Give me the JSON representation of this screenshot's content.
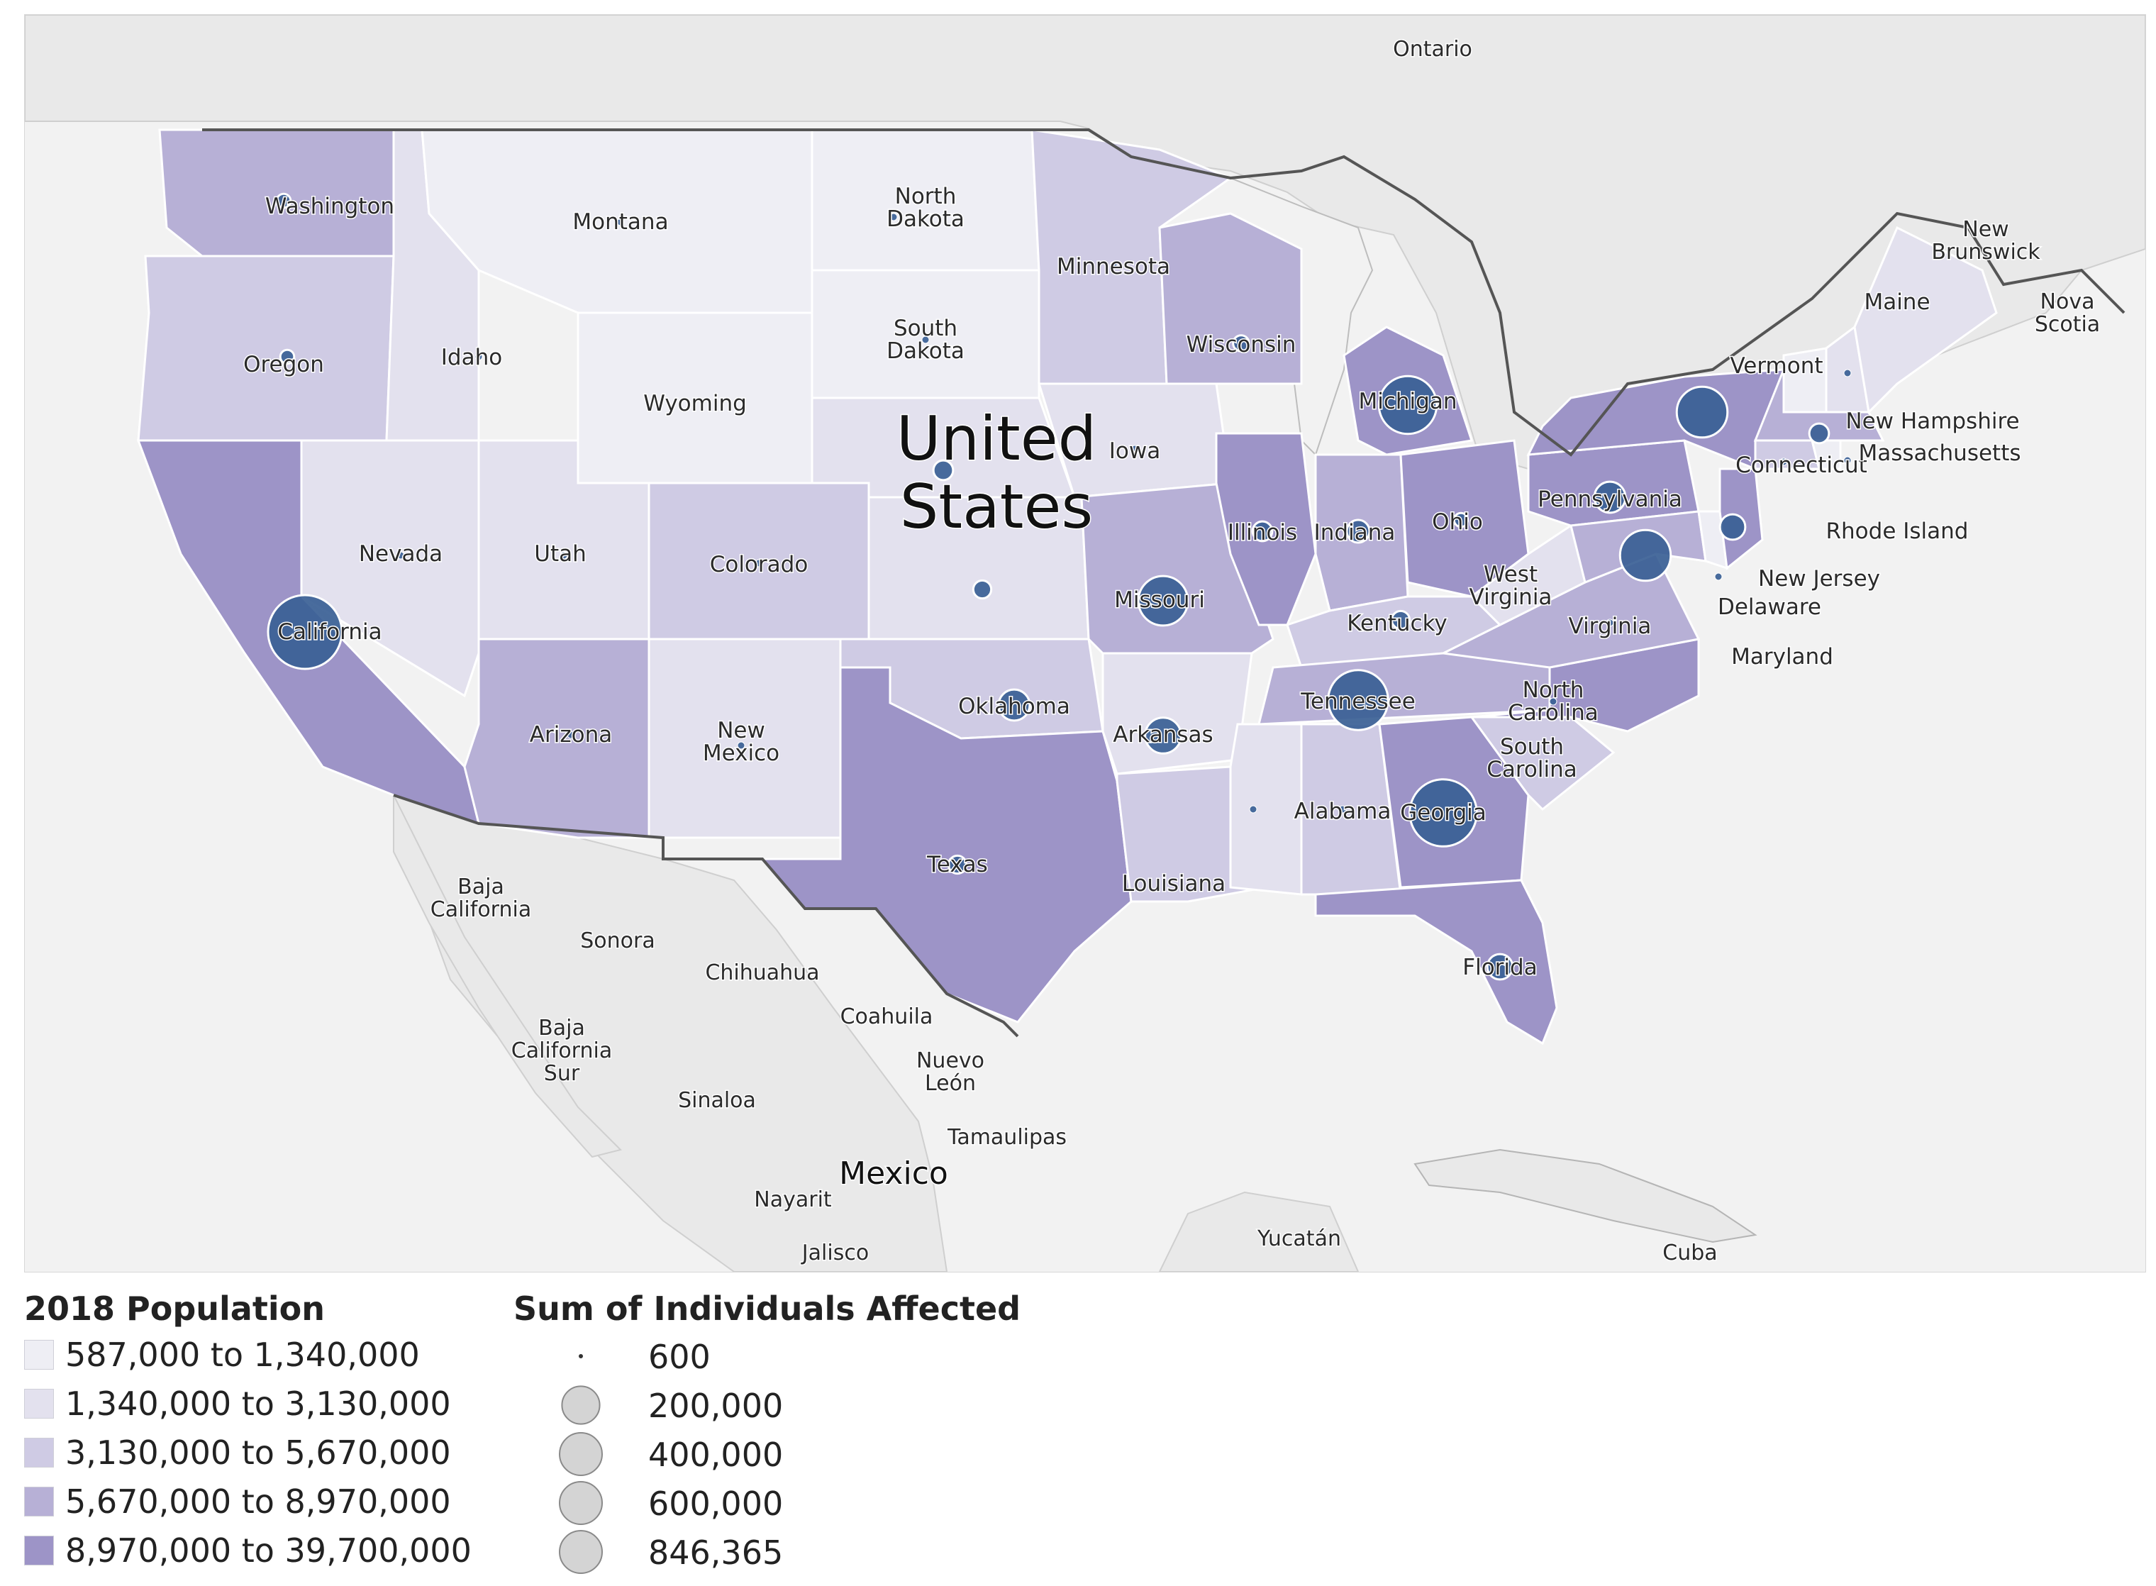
{
  "colors": {
    "water": "#f3f3f3",
    "land_other": "#ececec",
    "border": "#ffffff",
    "country_border": "#5a5a5a",
    "pop_bins": [
      "#eeeef4",
      "#e3e1ee",
      "#cfcbe4",
      "#b7b0d6",
      "#9d94c7"
    ],
    "bubble": "#3a5f95",
    "bubble_stroke": "#ffffff",
    "legend_circle": "#d4d4d4"
  },
  "map": {
    "country_labels": [
      {
        "name": "United States",
        "lines": [
          "United",
          "States"
        ]
      },
      {
        "name": "Mexico",
        "lines": [
          "Mexico"
        ]
      }
    ],
    "region_labels": [
      {
        "text": "Ontario"
      },
      {
        "text": "New Brunswick"
      },
      {
        "text": "Nova Scotia"
      },
      {
        "text": "Baja California"
      },
      {
        "text": "Sonora"
      },
      {
        "text": "Chihuahua"
      },
      {
        "text": "Coahuila"
      },
      {
        "text": "Baja California Sur"
      },
      {
        "text": "Sinaloa"
      },
      {
        "text": "Nuevo León"
      },
      {
        "text": "Tamaulipas"
      },
      {
        "text": "Nayarit"
      },
      {
        "text": "Jalisco"
      },
      {
        "text": "Yucatán"
      },
      {
        "text": "Cuba"
      }
    ],
    "states": [
      {
        "name": "Washington",
        "label": "Washington",
        "pop_bin": 3,
        "affected": 30000
      },
      {
        "name": "Oregon",
        "label": "Oregon",
        "pop_bin": 2,
        "affected": 30000
      },
      {
        "name": "California",
        "label": "California",
        "pop_bin": 4,
        "affected": 846365
      },
      {
        "name": "Idaho",
        "label": "Idaho",
        "pop_bin": 1,
        "affected": 600
      },
      {
        "name": "Nevada",
        "label": "Nevada",
        "pop_bin": 1,
        "affected": 600
      },
      {
        "name": "Montana",
        "label": "Montana",
        "pop_bin": 0,
        "affected": 600
      },
      {
        "name": "Wyoming",
        "label": "Wyoming",
        "pop_bin": 0,
        "affected": 0
      },
      {
        "name": "Utah",
        "label": "Utah",
        "pop_bin": 1,
        "affected": 600
      },
      {
        "name": "Arizona",
        "label": "Arizona",
        "pop_bin": 3,
        "affected": 4000
      },
      {
        "name": "Colorado",
        "label": "Colorado",
        "pop_bin": 2,
        "affected": 5000
      },
      {
        "name": "New Mexico",
        "label": "New Mexico",
        "pop_bin": 1,
        "affected": 600
      },
      {
        "name": "North Dakota",
        "label": "North Dakota",
        "pop_bin": 0,
        "affected": 600
      },
      {
        "name": "South Dakota",
        "label": "South Dakota",
        "pop_bin": 0,
        "affected": 600
      },
      {
        "name": "Nebraska",
        "label": "",
        "pop_bin": 1,
        "affected": 60000
      },
      {
        "name": "Kansas",
        "label": "",
        "pop_bin": 1,
        "affected": 50000
      },
      {
        "name": "Oklahoma",
        "label": "Oklahoma",
        "pop_bin": 2,
        "affected": 150000
      },
      {
        "name": "Texas",
        "label": "Texas",
        "pop_bin": 4,
        "affected": 50000
      },
      {
        "name": "Minnesota",
        "label": "Minnesota",
        "pop_bin": 2,
        "affected": 1500
      },
      {
        "name": "Iowa",
        "label": "Iowa",
        "pop_bin": 1,
        "affected": 1500
      },
      {
        "name": "Missouri",
        "label": "Missouri",
        "pop_bin": 3,
        "affected": 380000
      },
      {
        "name": "Arkansas",
        "label": "Arkansas",
        "pop_bin": 1,
        "affected": 200000
      },
      {
        "name": "Louisiana",
        "label": "Louisiana",
        "pop_bin": 2,
        "affected": 600
      },
      {
        "name": "Wisconsin",
        "label": "Wisconsin",
        "pop_bin": 3,
        "affected": 40000
      },
      {
        "name": "Illinois",
        "label": "Illinois",
        "pop_bin": 4,
        "affected": 60000
      },
      {
        "name": "Michigan",
        "label": "Michigan",
        "pop_bin": 4,
        "affected": 520000
      },
      {
        "name": "Indiana",
        "label": "Indiana",
        "pop_bin": 3,
        "affected": 80000
      },
      {
        "name": "Ohio",
        "label": "Ohio",
        "pop_bin": 4,
        "affected": 30000
      },
      {
        "name": "Kentucky",
        "label": "Kentucky",
        "pop_bin": 2,
        "affected": 50000
      },
      {
        "name": "Tennessee",
        "label": "Tennessee",
        "pop_bin": 3,
        "affected": 560000
      },
      {
        "name": "Mississippi",
        "label": "",
        "pop_bin": 1,
        "affected": 600
      },
      {
        "name": "Alabama",
        "label": "Alabama",
        "pop_bin": 2,
        "affected": 1500
      },
      {
        "name": "Georgia",
        "label": "Georgia",
        "pop_bin": 4,
        "affected": 700000
      },
      {
        "name": "Florida",
        "label": "Florida",
        "pop_bin": 4,
        "affected": 100000
      },
      {
        "name": "South Carolina",
        "label": "South Carolina",
        "pop_bin": 2,
        "affected": 600
      },
      {
        "name": "North Carolina",
        "label": "North Carolina",
        "pop_bin": 4,
        "affected": 2000
      },
      {
        "name": "Virginia",
        "label": "Virginia",
        "pop_bin": 3,
        "affected": 1000
      },
      {
        "name": "West Virginia",
        "label": "West Virginia",
        "pop_bin": 1,
        "affected": 0
      },
      {
        "name": "Pennsylvania",
        "label": "Pennsylvania",
        "pop_bin": 4,
        "affected": 150000
      },
      {
        "name": "New York",
        "label": "",
        "pop_bin": 4,
        "affected": 400000
      },
      {
        "name": "Maryland",
        "label": "Maryland",
        "pop_bin": 3,
        "affected": 400000
      },
      {
        "name": "Delaware",
        "label": "Delaware",
        "pop_bin": 0,
        "affected": 4000
      },
      {
        "name": "New Jersey",
        "label": "New Jersey",
        "pop_bin": 4,
        "affected": 100000
      },
      {
        "name": "Connecticut",
        "label": "Connecticut",
        "pop_bin": 2,
        "affected": 1200
      },
      {
        "name": "Rhode Island",
        "label": "Rhode Island",
        "pop_bin": 0,
        "affected": 0
      },
      {
        "name": "Massachusetts",
        "label": "Massachusetts",
        "pop_bin": 3,
        "affected": 60000
      },
      {
        "name": "Vermont",
        "label": "Vermont",
        "pop_bin": 0,
        "affected": 1000
      },
      {
        "name": "New Hampshire",
        "label": "New Hampshire",
        "pop_bin": 1,
        "affected": 1000
      },
      {
        "name": "Maine",
        "label": "Maine",
        "pop_bin": 1,
        "affected": 0
      }
    ]
  },
  "legend": {
    "population": {
      "title": "2018 Population",
      "bins": [
        "587,000 to 1,340,000",
        "1,340,000 to 3,130,000",
        "3,130,000 to 5,670,000",
        "5,670,000 to 8,970,000",
        "8,970,000 to 39,700,000"
      ]
    },
    "size": {
      "title": "Sum of Individuals Affected",
      "items": [
        {
          "label": "600",
          "value": 600
        },
        {
          "label": "200,000",
          "value": 200000
        },
        {
          "label": "400,000",
          "value": 400000
        },
        {
          "label": "600,000",
          "value": 600000
        },
        {
          "label": "846,365",
          "value": 846365
        }
      ]
    }
  }
}
